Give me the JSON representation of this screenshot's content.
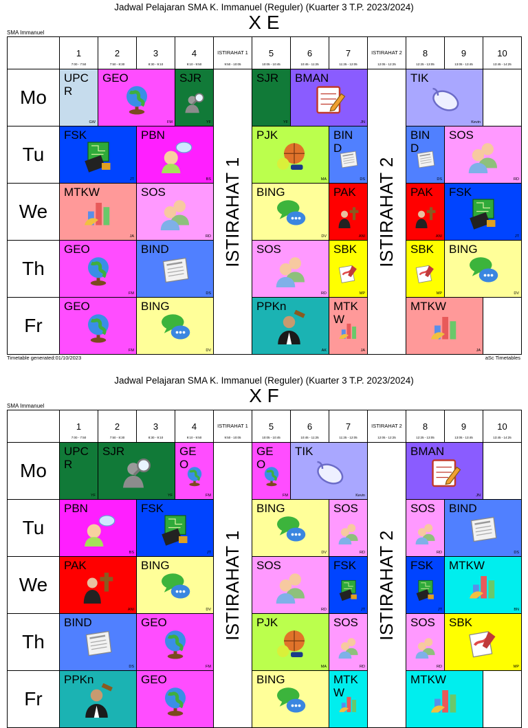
{
  "common": {
    "title": "Jadwal Pelajaran SMA K. Immanuel (Reguler) (Kuarter 3 T.P. 2023/2024)",
    "school": "SMA Immanuel",
    "generated": "Timetable generated:01/10/2023",
    "software": "aSc Timetables",
    "columns": [
      {
        "type": "period",
        "num": "1",
        "time": "7:00 - 7:50"
      },
      {
        "type": "period",
        "num": "2",
        "time": "7:50 - 8:30"
      },
      {
        "type": "period",
        "num": "3",
        "time": "8:30 - 9:10"
      },
      {
        "type": "period",
        "num": "4",
        "time": "9:10 - 9:50"
      },
      {
        "type": "break",
        "num": "ISTIRAHAT 1",
        "time": "9:50 - 10:05"
      },
      {
        "type": "period",
        "num": "5",
        "time": "10:05 - 10:45"
      },
      {
        "type": "period",
        "num": "6",
        "time": "10:45 - 11:25"
      },
      {
        "type": "period",
        "num": "7",
        "time": "11:25 - 12:05"
      },
      {
        "type": "break",
        "num": "ISTIRAHAT 2",
        "time": "12:05 - 12:25"
      },
      {
        "type": "period",
        "num": "8",
        "time": "12:25 - 13:05"
      },
      {
        "type": "period",
        "num": "9",
        "time": "13:05 - 13:45"
      },
      {
        "type": "period",
        "num": "10",
        "time": "13:45 - 14:25"
      }
    ],
    "days": [
      "Mo",
      "Tu",
      "We",
      "Th",
      "Fr"
    ],
    "breaks": [
      "ISTIRAHAT 1",
      "ISTIRAHAT 2"
    ]
  },
  "timetables": [
    {
      "class": "X E",
      "lessons": [
        {
          "day": 0,
          "start": 0,
          "span": 1,
          "subject": "UPCR",
          "teacher": "GW",
          "color": "#c6dced",
          "icon": "none"
        },
        {
          "day": 0,
          "start": 1,
          "span": 2,
          "subject": "GEO",
          "teacher": "FM",
          "color": "#ff4dff",
          "icon": "globe-icon"
        },
        {
          "day": 0,
          "start": 3,
          "span": 1,
          "subject": "SJR",
          "teacher": "YF",
          "color": "#117a38",
          "icon": "detective-icon"
        },
        {
          "day": 0,
          "start": 5,
          "span": 1,
          "subject": "SJR",
          "teacher": "YF",
          "color": "#117a38",
          "icon": "none"
        },
        {
          "day": 0,
          "start": 6,
          "span": 2,
          "subject": "BMAN",
          "teacher": "JN",
          "color": "#8a5cff",
          "icon": "notepad-icon"
        },
        {
          "day": 0,
          "start": 9,
          "span": 2,
          "subject": "TIK",
          "teacher": "Kevin",
          "color": "#a9a7ff",
          "icon": "mouse-icon"
        },
        {
          "day": 1,
          "start": 0,
          "span": 2,
          "subject": "FSK",
          "teacher": "JT",
          "color": "#0044ff",
          "icon": "circuit-icon"
        },
        {
          "day": 1,
          "start": 2,
          "span": 2,
          "subject": "PBN",
          "teacher": "BS",
          "color": "#ff1fff",
          "icon": "speaker-icon"
        },
        {
          "day": 1,
          "start": 5,
          "span": 2,
          "subject": "PJK",
          "teacher": "MA",
          "color": "#bbff4d",
          "icon": "balls-icon"
        },
        {
          "day": 1,
          "start": 7,
          "span": 1,
          "subject": "BIND",
          "teacher": "DS",
          "color": "#5080ff",
          "icon": "newspaper-icon"
        },
        {
          "day": 1,
          "start": 9,
          "span": 1,
          "subject": "BIND",
          "teacher": "DS",
          "color": "#5080ff",
          "icon": "newspaper-icon"
        },
        {
          "day": 1,
          "start": 10,
          "span": 2,
          "subject": "SOS",
          "teacher": "RD",
          "color": "#ff99ff",
          "icon": "people-icon"
        },
        {
          "day": 2,
          "start": 0,
          "span": 2,
          "subject": "MTKW",
          "teacher": "JA",
          "color": "#ff9999",
          "icon": "chart-icon"
        },
        {
          "day": 2,
          "start": 2,
          "span": 2,
          "subject": "SOS",
          "teacher": "RD",
          "color": "#ff99ff",
          "icon": "people-icon"
        },
        {
          "day": 2,
          "start": 5,
          "span": 2,
          "subject": "BING",
          "teacher": "DV",
          "color": "#ffff99",
          "icon": "chat-icon"
        },
        {
          "day": 2,
          "start": 7,
          "span": 1,
          "subject": "PAK",
          "teacher": "ANI",
          "color": "#ff0000",
          "icon": "cross-icon"
        },
        {
          "day": 2,
          "start": 9,
          "span": 1,
          "subject": "PAK",
          "teacher": "ANI",
          "color": "#ff0000",
          "icon": "cross-icon"
        },
        {
          "day": 2,
          "start": 10,
          "span": 2,
          "subject": "FSK",
          "teacher": "JT",
          "color": "#0044ff",
          "icon": "circuit-icon"
        },
        {
          "day": 3,
          "start": 0,
          "span": 2,
          "subject": "GEO",
          "teacher": "FM",
          "color": "#ff4dff",
          "icon": "globe-icon"
        },
        {
          "day": 3,
          "start": 2,
          "span": 2,
          "subject": "BIND",
          "teacher": "DS",
          "color": "#5080ff",
          "icon": "newspaper-icon"
        },
        {
          "day": 3,
          "start": 5,
          "span": 2,
          "subject": "SOS",
          "teacher": "RD",
          "color": "#ff99ff",
          "icon": "people-icon"
        },
        {
          "day": 3,
          "start": 7,
          "span": 1,
          "subject": "SBK",
          "teacher": "MP",
          "color": "#ffff00",
          "icon": "paint-icon"
        },
        {
          "day": 3,
          "start": 9,
          "span": 1,
          "subject": "SBK",
          "teacher": "MP",
          "color": "#ffff00",
          "icon": "paint-icon"
        },
        {
          "day": 3,
          "start": 10,
          "span": 2,
          "subject": "BING",
          "teacher": "DV",
          "color": "#ffff99",
          "icon": "chat-icon"
        },
        {
          "day": 4,
          "start": 0,
          "span": 2,
          "subject": "GEO",
          "teacher": "FM",
          "color": "#ff4dff",
          "icon": "globe-icon"
        },
        {
          "day": 4,
          "start": 2,
          "span": 2,
          "subject": "BING",
          "teacher": "DV",
          "color": "#ffff99",
          "icon": "chat-icon"
        },
        {
          "day": 4,
          "start": 5,
          "span": 2,
          "subject": "PPKn",
          "teacher": "AK",
          "color": "#1bb3b3",
          "icon": "judge-icon"
        },
        {
          "day": 4,
          "start": 7,
          "span": 1,
          "subject": "MTKW",
          "teacher": "JA",
          "color": "#ff9999",
          "icon": "chart-icon"
        },
        {
          "day": 4,
          "start": 9,
          "span": 2,
          "subject": "MTKW",
          "teacher": "JA",
          "color": "#ff9999",
          "icon": "chart-icon"
        }
      ]
    },
    {
      "class": "X F",
      "lessons": [
        {
          "day": 0,
          "start": 0,
          "span": 1,
          "subject": "UPCR",
          "teacher": "YF",
          "color": "#117a38",
          "icon": "none"
        },
        {
          "day": 0,
          "start": 1,
          "span": 2,
          "subject": "SJR",
          "teacher": "YF",
          "color": "#117a38",
          "icon": "detective-icon"
        },
        {
          "day": 0,
          "start": 3,
          "span": 1,
          "subject": "GEO",
          "teacher": "FM",
          "color": "#ff4dff",
          "icon": "globe-icon"
        },
        {
          "day": 0,
          "start": 5,
          "span": 1,
          "subject": "GEO",
          "teacher": "FM",
          "color": "#ff4dff",
          "icon": "globe-icon"
        },
        {
          "day": 0,
          "start": 6,
          "span": 2,
          "subject": "TIK",
          "teacher": "Kevin",
          "color": "#a9a7ff",
          "icon": "mouse-icon"
        },
        {
          "day": 0,
          "start": 9,
          "span": 2,
          "subject": "BMAN",
          "teacher": "JN",
          "color": "#8a5cff",
          "icon": "notepad-icon"
        },
        {
          "day": 1,
          "start": 0,
          "span": 2,
          "subject": "PBN",
          "teacher": "BS",
          "color": "#ff1fff",
          "icon": "speaker-icon"
        },
        {
          "day": 1,
          "start": 2,
          "span": 2,
          "subject": "FSK",
          "teacher": "JT",
          "color": "#0044ff",
          "icon": "circuit-icon"
        },
        {
          "day": 1,
          "start": 5,
          "span": 2,
          "subject": "BING",
          "teacher": "DV",
          "color": "#ffff99",
          "icon": "chat-icon"
        },
        {
          "day": 1,
          "start": 7,
          "span": 1,
          "subject": "SOS",
          "teacher": "RD",
          "color": "#ff99ff",
          "icon": "people-icon"
        },
        {
          "day": 1,
          "start": 9,
          "span": 1,
          "subject": "SOS",
          "teacher": "RD",
          "color": "#ff99ff",
          "icon": "people-icon"
        },
        {
          "day": 1,
          "start": 10,
          "span": 2,
          "subject": "BIND",
          "teacher": "DS",
          "color": "#5080ff",
          "icon": "newspaper-icon"
        },
        {
          "day": 2,
          "start": 0,
          "span": 2,
          "subject": "PAK",
          "teacher": "ANI",
          "color": "#ff0000",
          "icon": "cross-icon"
        },
        {
          "day": 2,
          "start": 2,
          "span": 2,
          "subject": "BING",
          "teacher": "DV",
          "color": "#ffff99",
          "icon": "chat-icon"
        },
        {
          "day": 2,
          "start": 5,
          "span": 2,
          "subject": "SOS",
          "teacher": "RD",
          "color": "#ff99ff",
          "icon": "people-icon"
        },
        {
          "day": 2,
          "start": 7,
          "span": 1,
          "subject": "FSK",
          "teacher": "JT",
          "color": "#0044ff",
          "icon": "circuit-icon"
        },
        {
          "day": 2,
          "start": 9,
          "span": 1,
          "subject": "FSK",
          "teacher": "JT",
          "color": "#0044ff",
          "icon": "circuit-icon"
        },
        {
          "day": 2,
          "start": 10,
          "span": 2,
          "subject": "MTKW",
          "teacher": "BN",
          "color": "#00eeee",
          "icon": "chart-icon"
        },
        {
          "day": 3,
          "start": 0,
          "span": 2,
          "subject": "BIND",
          "teacher": "DS",
          "color": "#5080ff",
          "icon": "newspaper-icon"
        },
        {
          "day": 3,
          "start": 2,
          "span": 2,
          "subject": "GEO",
          "teacher": "FM",
          "color": "#ff4dff",
          "icon": "globe-icon"
        },
        {
          "day": 3,
          "start": 5,
          "span": 2,
          "subject": "PJK",
          "teacher": "MA",
          "color": "#bbff4d",
          "icon": "balls-icon"
        },
        {
          "day": 3,
          "start": 7,
          "span": 1,
          "subject": "SOS",
          "teacher": "RD",
          "color": "#ff99ff",
          "icon": "people-icon"
        },
        {
          "day": 3,
          "start": 9,
          "span": 1,
          "subject": "SOS",
          "teacher": "RD",
          "color": "#ff99ff",
          "icon": "people-icon"
        },
        {
          "day": 3,
          "start": 10,
          "span": 2,
          "subject": "SBK",
          "teacher": "MP",
          "color": "#ffff00",
          "icon": "paint-icon"
        },
        {
          "day": 4,
          "start": 0,
          "span": 2,
          "subject": "PPKn",
          "teacher": "",
          "color": "#1bb3b3",
          "icon": "judge-icon"
        },
        {
          "day": 4,
          "start": 2,
          "span": 2,
          "subject": "GEO",
          "teacher": "",
          "color": "#ff4dff",
          "icon": "globe-icon"
        },
        {
          "day": 4,
          "start": 5,
          "span": 2,
          "subject": "BING",
          "teacher": "",
          "color": "#ffff99",
          "icon": "chat-icon"
        },
        {
          "day": 4,
          "start": 7,
          "span": 1,
          "subject": "MTKW",
          "teacher": "",
          "color": "#00eeee",
          "icon": "chart-icon"
        },
        {
          "day": 4,
          "start": 9,
          "span": 2,
          "subject": "MTKW",
          "teacher": "",
          "color": "#00eeee",
          "icon": "chart-icon"
        }
      ]
    }
  ]
}
